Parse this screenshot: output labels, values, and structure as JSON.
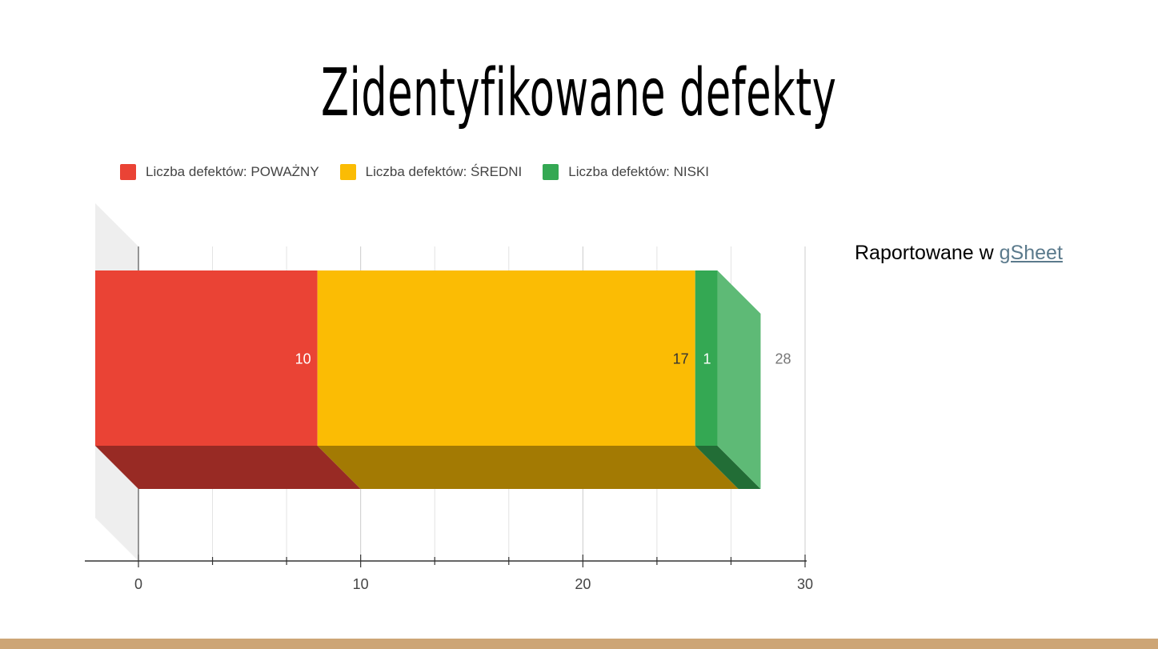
{
  "page": {
    "title": "Zidentyfikowane defekty",
    "note_prefix": "Raportowane w ",
    "note_link": "gSheet"
  },
  "colors": {
    "serious": "#ea4335",
    "medium": "#fbbc04",
    "low": "#34a853",
    "bottom_bar": "#cda576"
  },
  "chart_data": {
    "type": "bar",
    "orientation": "horizontal",
    "stacked": true,
    "three_d": true,
    "categories": [
      ""
    ],
    "series": [
      {
        "name": "Liczba defektów: POWAŻNY",
        "values": [
          10
        ],
        "color": "#ea4335",
        "top_color": "#982a24",
        "side_color": "#982a24",
        "label_color": "#ffffff"
      },
      {
        "name": "Liczba defektów: ŚREDNI",
        "values": [
          17
        ],
        "color": "#fbbc04",
        "top_color": "#a37a03",
        "side_color": "#a37a03",
        "label_color": "#333333"
      },
      {
        "name": "Liczba defektów: NISKI",
        "values": [
          1
        ],
        "color": "#34a853",
        "top_color": "#226d36",
        "side_color": "#5eba76",
        "label_color": "#ffffff"
      }
    ],
    "total": 28,
    "xlim": [
      0,
      30
    ],
    "x_ticks": [
      0,
      10,
      20,
      30
    ],
    "x_minor_step": 3.333,
    "grid": true,
    "legend_position": "top"
  }
}
